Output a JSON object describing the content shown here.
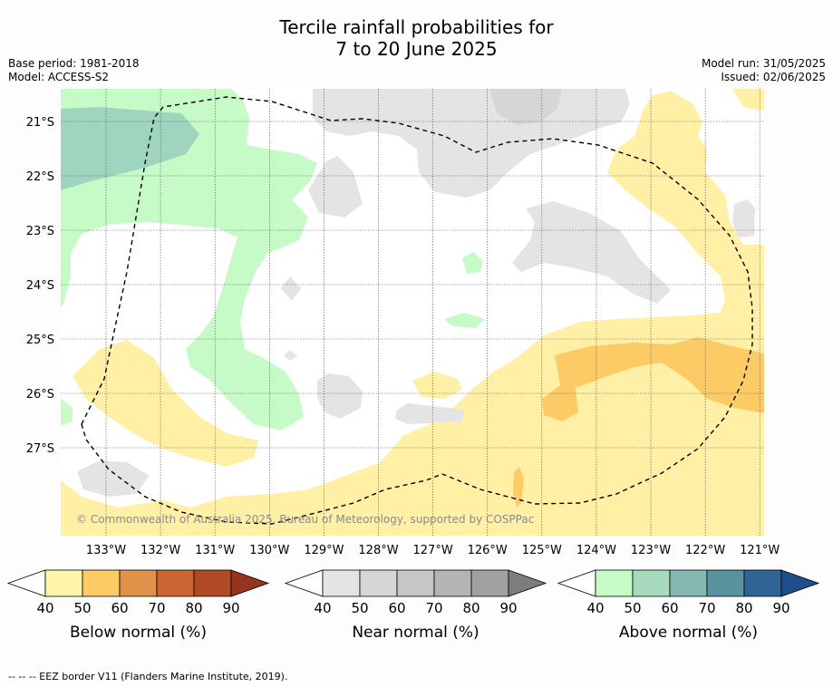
{
  "header": {
    "title_line1": "Tercile rainfall probabilities for",
    "title_line2": "7 to 20 June 2025",
    "base_period": "Base period: 1981-2018",
    "model": "Model: ACCESS-S2",
    "model_run": "Model run: 31/05/2025",
    "issued": "Issued: 02/06/2025"
  },
  "map": {
    "latitude_labels": [
      "21°S",
      "22°S",
      "23°S",
      "24°S",
      "25°S",
      "26°S",
      "27°S"
    ],
    "longitude_labels": [
      "133°W",
      "132°W",
      "131°W",
      "130°W",
      "129°W",
      "128°W",
      "127°W",
      "126°W",
      "125°W",
      "124°W",
      "123°W",
      "122°W",
      "121°W"
    ],
    "extent": {
      "lon_west": -133.8,
      "lon_east": -120.9,
      "lat_north": -20.5,
      "lat_south": -28.6
    },
    "grid": true,
    "copyright": "© Commonwealth of Australia 2025, Bureau of Meteorology, supported by COSPPac"
  },
  "colorbars": [
    {
      "label": "Below normal (%)",
      "ticks": [
        "40",
        "50",
        "60",
        "70",
        "80",
        "90"
      ],
      "colors": [
        "#fff4a8",
        "#fdcb66",
        "#e0924a",
        "#cc6532",
        "#b04a26",
        "#973420"
      ]
    },
    {
      "label": "Near normal (%)",
      "ticks": [
        "40",
        "50",
        "60",
        "70",
        "80",
        "90"
      ],
      "colors": [
        "#e4e4e4",
        "#d6d6d6",
        "#c6c6c6",
        "#b4b4b4",
        "#a1a1a1",
        "#7d7d7d"
      ]
    },
    {
      "label": "Above normal (%)",
      "ticks": [
        "40",
        "50",
        "60",
        "70",
        "80",
        "90"
      ],
      "colors": [
        "#c6fbc8",
        "#a6dbbd",
        "#84b8b0",
        "#5a93a0",
        "#2f6496",
        "#1e4e8c"
      ]
    }
  ],
  "colors": {
    "below_50": "#fdcb66",
    "below_40": "#fff0a6",
    "near_40": "#e4e4e4",
    "near_50": "#d9d9d9",
    "above_40": "#c6fbc8",
    "above_50": "#9fd4bf"
  },
  "footer": {
    "legend_line": "--  --  -- EEZ border V11 (Flanders Marine Institute, 2019)."
  }
}
